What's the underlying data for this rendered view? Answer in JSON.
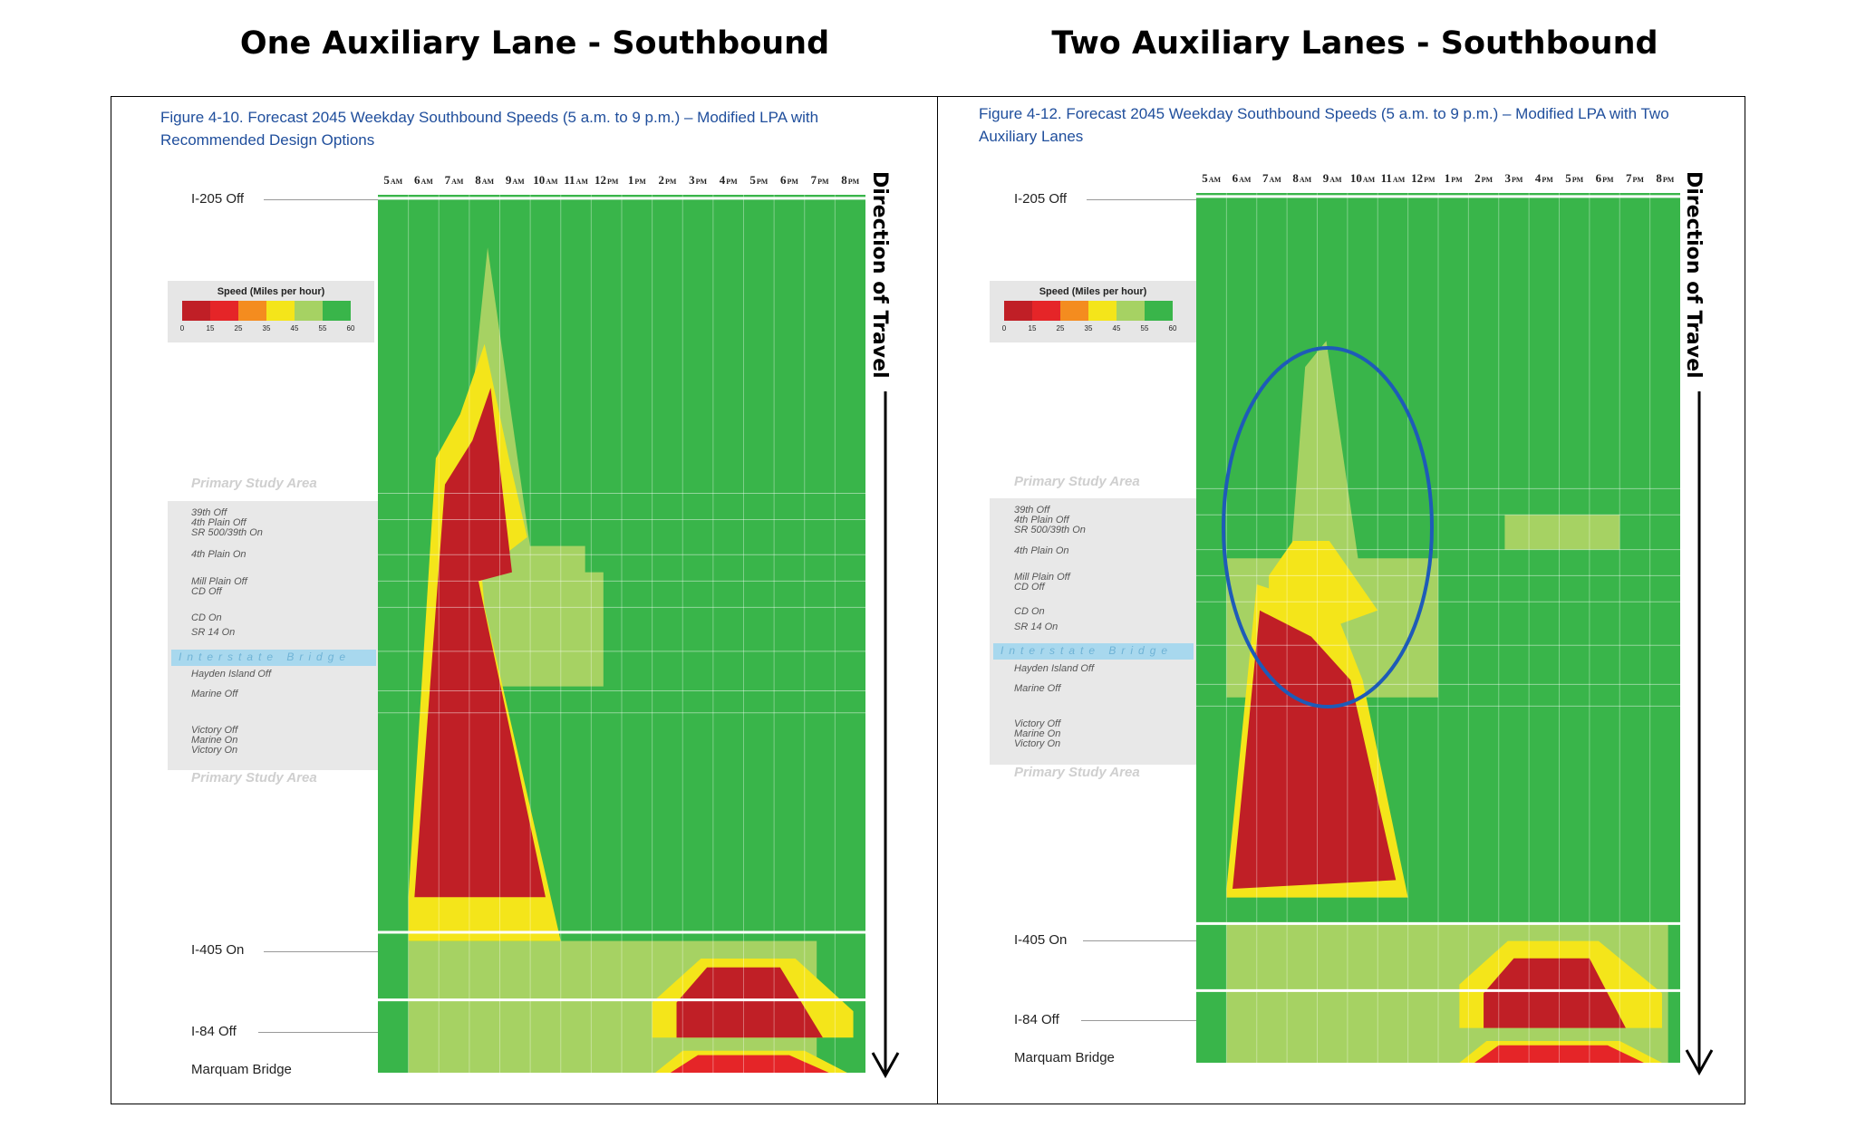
{
  "titles": {
    "left": "One Auxiliary Lane - Southbound",
    "right": "Two Auxiliary Lanes - Southbound"
  },
  "colors": {
    "s0": "#c01f26",
    "s15": "#e52528",
    "s25": "#f48c1f",
    "s35": "#f4e51a",
    "s45": "#a6d263",
    "s55": "#39b54a",
    "caption": "#1f4e9c",
    "highlight": "#1e5bb8"
  },
  "legend": {
    "title": "Speed (Miles per hour)",
    "ticks": [
      "0",
      "15",
      "25",
      "35",
      "45",
      "55",
      "60"
    ]
  },
  "direction_label": "Direction of Travel",
  "study_area_label": "Primary Study Area",
  "bridge_label": "Interstate Bridge",
  "locations": {
    "main": [
      "I-205 Off",
      "I-405 On",
      "I-84 Off",
      "Marquam Bridge"
    ],
    "minor": [
      "39th Off",
      "4th Plain Off",
      "SR 500/39th On",
      "4th Plain On",
      "Mill Plain Off",
      "CD Off",
      "CD On",
      "SR 14 On",
      "Hayden Island Off",
      "Marine Off",
      "Victory Off",
      "Marine On",
      "Victory On"
    ]
  },
  "chart_data": [
    {
      "type": "heatmap",
      "title": "Figure 4-10. Forecast 2045 Weekday Southbound Speeds (5 a.m. to 9 p.m.) – Modified LPA with Recommended Design Options",
      "x_ticks": [
        {
          "n": "5",
          "s": "AM"
        },
        {
          "n": "6",
          "s": "AM"
        },
        {
          "n": "7",
          "s": "AM"
        },
        {
          "n": "8",
          "s": "AM"
        },
        {
          "n": "9",
          "s": "AM"
        },
        {
          "n": "10",
          "s": "AM"
        },
        {
          "n": "11",
          "s": "AM"
        },
        {
          "n": "12",
          "s": "PM"
        },
        {
          "n": "1",
          "s": "PM"
        },
        {
          "n": "2",
          "s": "PM"
        },
        {
          "n": "3",
          "s": "PM"
        },
        {
          "n": "4",
          "s": "PM"
        },
        {
          "n": "5",
          "s": "PM"
        },
        {
          "n": "6",
          "s": "PM"
        },
        {
          "n": "7",
          "s": "PM"
        },
        {
          "n": "8",
          "s": "PM"
        }
      ],
      "speed_scale_mph": [
        0,
        15,
        25,
        35,
        45,
        55,
        60
      ],
      "congestion_shapes": [
        {
          "level": "45",
          "poly": [
            [
              2.3,
              0.5
            ],
            [
              3.6,
              0.06
            ],
            [
              5.4,
              0.5
            ]
          ]
        },
        {
          "level": "45",
          "poly": [
            [
              2.3,
              0.4
            ],
            [
              2.3,
              0.5
            ],
            [
              6.8,
              0.5
            ],
            [
              6.8,
              0.4
            ]
          ]
        },
        {
          "level": "45",
          "poly": [
            [
              2.3,
              0.43
            ],
            [
              2.3,
              0.56
            ],
            [
              7.4,
              0.56
            ],
            [
              7.4,
              0.43
            ]
          ]
        },
        {
          "level": "35",
          "poly": [
            [
              1.0,
              0.8
            ],
            [
              1.9,
              0.3
            ],
            [
              2.7,
              0.25
            ],
            [
              3.5,
              0.17
            ],
            [
              4.3,
              0.3
            ],
            [
              4.9,
              0.39
            ],
            [
              3.4,
              0.43
            ],
            [
              3.5,
              0.47
            ],
            [
              6.0,
              0.85
            ],
            [
              1.0,
              0.85
            ]
          ]
        },
        {
          "level": "0",
          "poly": [
            [
              1.2,
              0.8
            ],
            [
              2.2,
              0.33
            ],
            [
              3.1,
              0.28
            ],
            [
              3.7,
              0.22
            ],
            [
              4.4,
              0.43
            ],
            [
              3.3,
              0.44
            ],
            [
              3.6,
              0.49
            ],
            [
              5.5,
              0.8
            ]
          ]
        },
        {
          "level": "35",
          "poly": [
            [
              9.0,
              0.92
            ],
            [
              10.6,
              0.87
            ],
            [
              13.7,
              0.87
            ],
            [
              15.6,
              0.93
            ],
            [
              15.6,
              0.96
            ],
            [
              9.0,
              0.96
            ]
          ]
        },
        {
          "level": "0",
          "poly": [
            [
              9.8,
              0.92
            ],
            [
              10.8,
              0.88
            ],
            [
              13.2,
              0.88
            ],
            [
              14.6,
              0.96
            ],
            [
              9.8,
              0.96
            ]
          ]
        },
        {
          "level": "35",
          "poly": [
            [
              9.1,
              1.0
            ],
            [
              10.0,
              0.975
            ],
            [
              14.0,
              0.975
            ],
            [
              15.4,
              1.0
            ]
          ]
        },
        {
          "level": "15",
          "poly": [
            [
              9.6,
              1.0
            ],
            [
              10.5,
              0.98
            ],
            [
              13.5,
              0.98
            ],
            [
              14.8,
              1.0
            ]
          ]
        }
      ],
      "tail_from_row": 0.85,
      "tail_end_col": 14.4
    },
    {
      "type": "heatmap",
      "title": "Figure 4-12. Forecast 2045 Weekday Southbound Speeds (5 a.m. to 9 p.m.) – Modified LPA with Two Auxiliary Lanes",
      "x_ticks": [
        {
          "n": "5",
          "s": "AM"
        },
        {
          "n": "6",
          "s": "AM"
        },
        {
          "n": "7",
          "s": "AM"
        },
        {
          "n": "8",
          "s": "AM"
        },
        {
          "n": "9",
          "s": "AM"
        },
        {
          "n": "10",
          "s": "AM"
        },
        {
          "n": "11",
          "s": "AM"
        },
        {
          "n": "12",
          "s": "PM"
        },
        {
          "n": "1",
          "s": "PM"
        },
        {
          "n": "2",
          "s": "PM"
        },
        {
          "n": "3",
          "s": "PM"
        },
        {
          "n": "4",
          "s": "PM"
        },
        {
          "n": "5",
          "s": "PM"
        },
        {
          "n": "6",
          "s": "PM"
        },
        {
          "n": "7",
          "s": "PM"
        },
        {
          "n": "8",
          "s": "PM"
        }
      ],
      "speed_scale_mph": [
        0,
        15,
        25,
        35,
        45,
        55,
        60
      ],
      "congestion_shapes": [
        {
          "level": "45",
          "poly": [
            [
              3.0,
              0.48
            ],
            [
              3.6,
              0.2
            ],
            [
              4.3,
              0.17
            ],
            [
              5.6,
              0.48
            ]
          ]
        },
        {
          "level": "45",
          "poly": [
            [
              1.0,
              0.42
            ],
            [
              1.0,
              0.58
            ],
            [
              8.0,
              0.58
            ],
            [
              8.0,
              0.42
            ]
          ]
        },
        {
          "level": "45",
          "poly": [
            [
              10.2,
              0.37
            ],
            [
              10.2,
              0.41
            ],
            [
              14.0,
              0.41
            ],
            [
              14.0,
              0.37
            ]
          ]
        },
        {
          "level": "35",
          "poly": [
            [
              2.4,
              0.44
            ],
            [
              3.2,
              0.4
            ],
            [
              4.4,
              0.4
            ],
            [
              6.0,
              0.48
            ],
            [
              4.4,
              0.5
            ],
            [
              2.4,
              0.5
            ]
          ]
        },
        {
          "level": "35",
          "poly": [
            [
              1.0,
              0.8
            ],
            [
              2.0,
              0.45
            ],
            [
              4.6,
              0.48
            ],
            [
              5.5,
              0.56
            ],
            [
              7.0,
              0.81
            ],
            [
              1.0,
              0.81
            ]
          ]
        },
        {
          "level": "0",
          "poly": [
            [
              1.2,
              0.8
            ],
            [
              2.1,
              0.48
            ],
            [
              3.8,
              0.51
            ],
            [
              5.1,
              0.56
            ],
            [
              6.6,
              0.79
            ]
          ]
        },
        {
          "level": "35",
          "poly": [
            [
              8.7,
              0.91
            ],
            [
              10.3,
              0.86
            ],
            [
              13.3,
              0.86
            ],
            [
              15.4,
              0.92
            ],
            [
              15.4,
              0.96
            ],
            [
              8.7,
              0.96
            ]
          ]
        },
        {
          "level": "0",
          "poly": [
            [
              9.5,
              0.92
            ],
            [
              10.5,
              0.88
            ],
            [
              13.0,
              0.88
            ],
            [
              14.2,
              0.96
            ],
            [
              9.5,
              0.96
            ]
          ]
        },
        {
          "level": "35",
          "poly": [
            [
              8.7,
              1.0
            ],
            [
              9.6,
              0.975
            ],
            [
              14.0,
              0.975
            ],
            [
              15.4,
              1.0
            ]
          ]
        },
        {
          "level": "15",
          "poly": [
            [
              9.2,
              1.0
            ],
            [
              10.0,
              0.98
            ],
            [
              13.6,
              0.98
            ],
            [
              14.8,
              1.0
            ]
          ]
        }
      ],
      "tail_from_row": 0.84,
      "tail_end_col": 15.6
    }
  ]
}
